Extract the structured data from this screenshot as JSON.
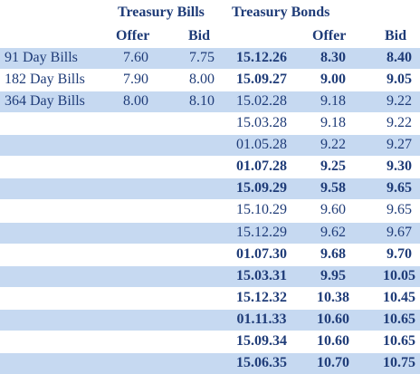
{
  "header": {
    "bills_title": "Treasury Bills",
    "bonds_title": "Treasury Bonds",
    "bills_columns": [
      "Offer",
      "Bid"
    ],
    "bonds_columns": [
      "Offer",
      "Bid"
    ]
  },
  "bills": [
    {
      "label": "91 Day Bills",
      "offer": "7.60",
      "bid": "7.75"
    },
    {
      "label": "182 Day Bills",
      "offer": "7.90",
      "bid": "8.00"
    },
    {
      "label": "364 Day Bills",
      "offer": "8.00",
      "bid": "8.10"
    }
  ],
  "bonds": [
    {
      "date": "15.12.26",
      "offer": "8.30",
      "bid": "8.40",
      "bold": true
    },
    {
      "date": "15.09.27",
      "offer": "9.00",
      "bid": "9.05",
      "bold": true
    },
    {
      "date": "15.02.28",
      "offer": "9.18",
      "bid": "9.22",
      "bold": false
    },
    {
      "date": "15.03.28",
      "offer": "9.18",
      "bid": "9.22",
      "bold": false
    },
    {
      "date": "01.05.28",
      "offer": "9.22",
      "bid": "9.27",
      "bold": false
    },
    {
      "date": "01.07.28",
      "offer": "9.25",
      "bid": "9.30",
      "bold": true
    },
    {
      "date": "15.09.29",
      "offer": "9.58",
      "bid": "9.65",
      "bold": true
    },
    {
      "date": "15.10.29",
      "offer": "9.60",
      "bid": "9.65",
      "bold": false
    },
    {
      "date": "15.12.29",
      "offer": "9.62",
      "bid": "9.67",
      "bold": false
    },
    {
      "date": "01.07.30",
      "offer": "9.68",
      "bid": "9.70",
      "bold": true
    },
    {
      "date": "15.03.31",
      "offer": "9.95",
      "bid": "10.05",
      "bold": true
    },
    {
      "date": "15.12.32",
      "offer": "10.38",
      "bid": "10.45",
      "bold": true
    },
    {
      "date": "01.11.33",
      "offer": "10.60",
      "bid": "10.65",
      "bold": true
    },
    {
      "date": "15.09.34",
      "offer": "10.60",
      "bid": "10.65",
      "bold": true
    },
    {
      "date": "15.06.35",
      "offer": "10.70",
      "bid": "10.75",
      "bold": true
    }
  ]
}
